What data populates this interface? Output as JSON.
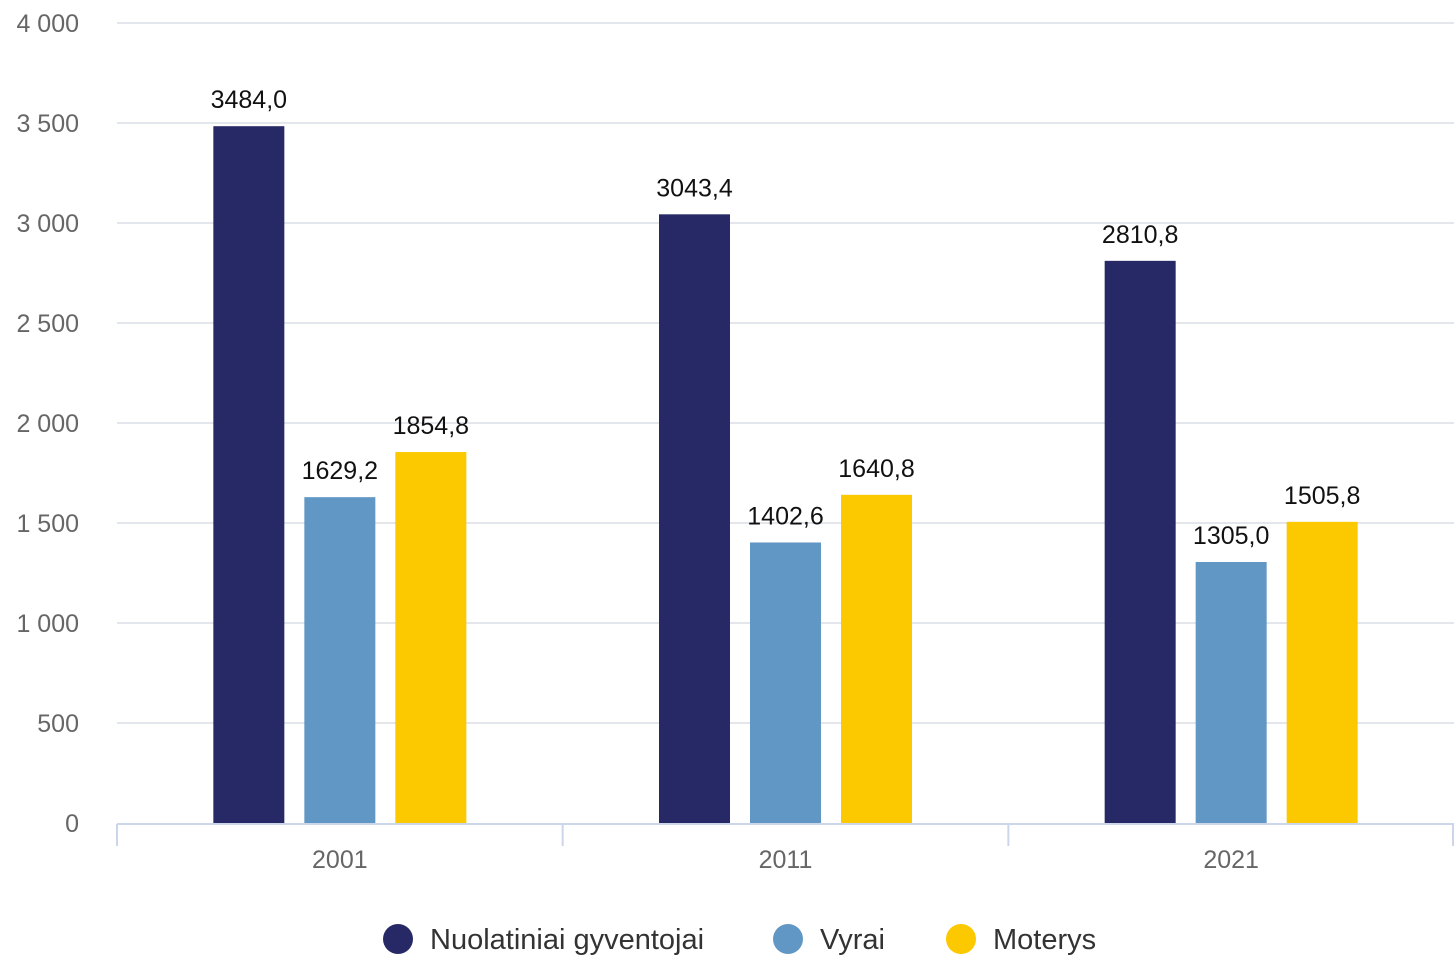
{
  "chart_data": {
    "type": "bar",
    "categories": [
      "2001",
      "2011",
      "2021"
    ],
    "series": [
      {
        "name": "Nuolatiniai gyventojai",
        "color": "#272966",
        "values": [
          3484.0,
          3043.4,
          2810.8
        ],
        "labels": [
          "3484,0",
          "3043,4",
          "2810,8"
        ]
      },
      {
        "name": "Vyrai",
        "color": "#6197c4",
        "values": [
          1629.2,
          1402.6,
          1305.0
        ],
        "labels": [
          "1629,2",
          "1402,6",
          "1305,0"
        ]
      },
      {
        "name": "Moterys",
        "color": "#fcc800",
        "values": [
          1854.8,
          1640.8,
          1505.8
        ],
        "labels": [
          "1854,8",
          "1640,8",
          "1505,8"
        ]
      }
    ],
    "yticks": [
      0,
      500,
      1000,
      1500,
      2000,
      2500,
      3000,
      3500,
      4000
    ],
    "ytick_labels": [
      "0",
      "500",
      "1 000",
      "1 500",
      "2 000",
      "2 500",
      "3 000",
      "3 500",
      "4 000"
    ],
    "ylim": [
      0,
      4000
    ],
    "grid": true,
    "legend_position": "bottom",
    "gridline_color": "#e3e6eb",
    "axis_color": "#ccd6eb"
  }
}
